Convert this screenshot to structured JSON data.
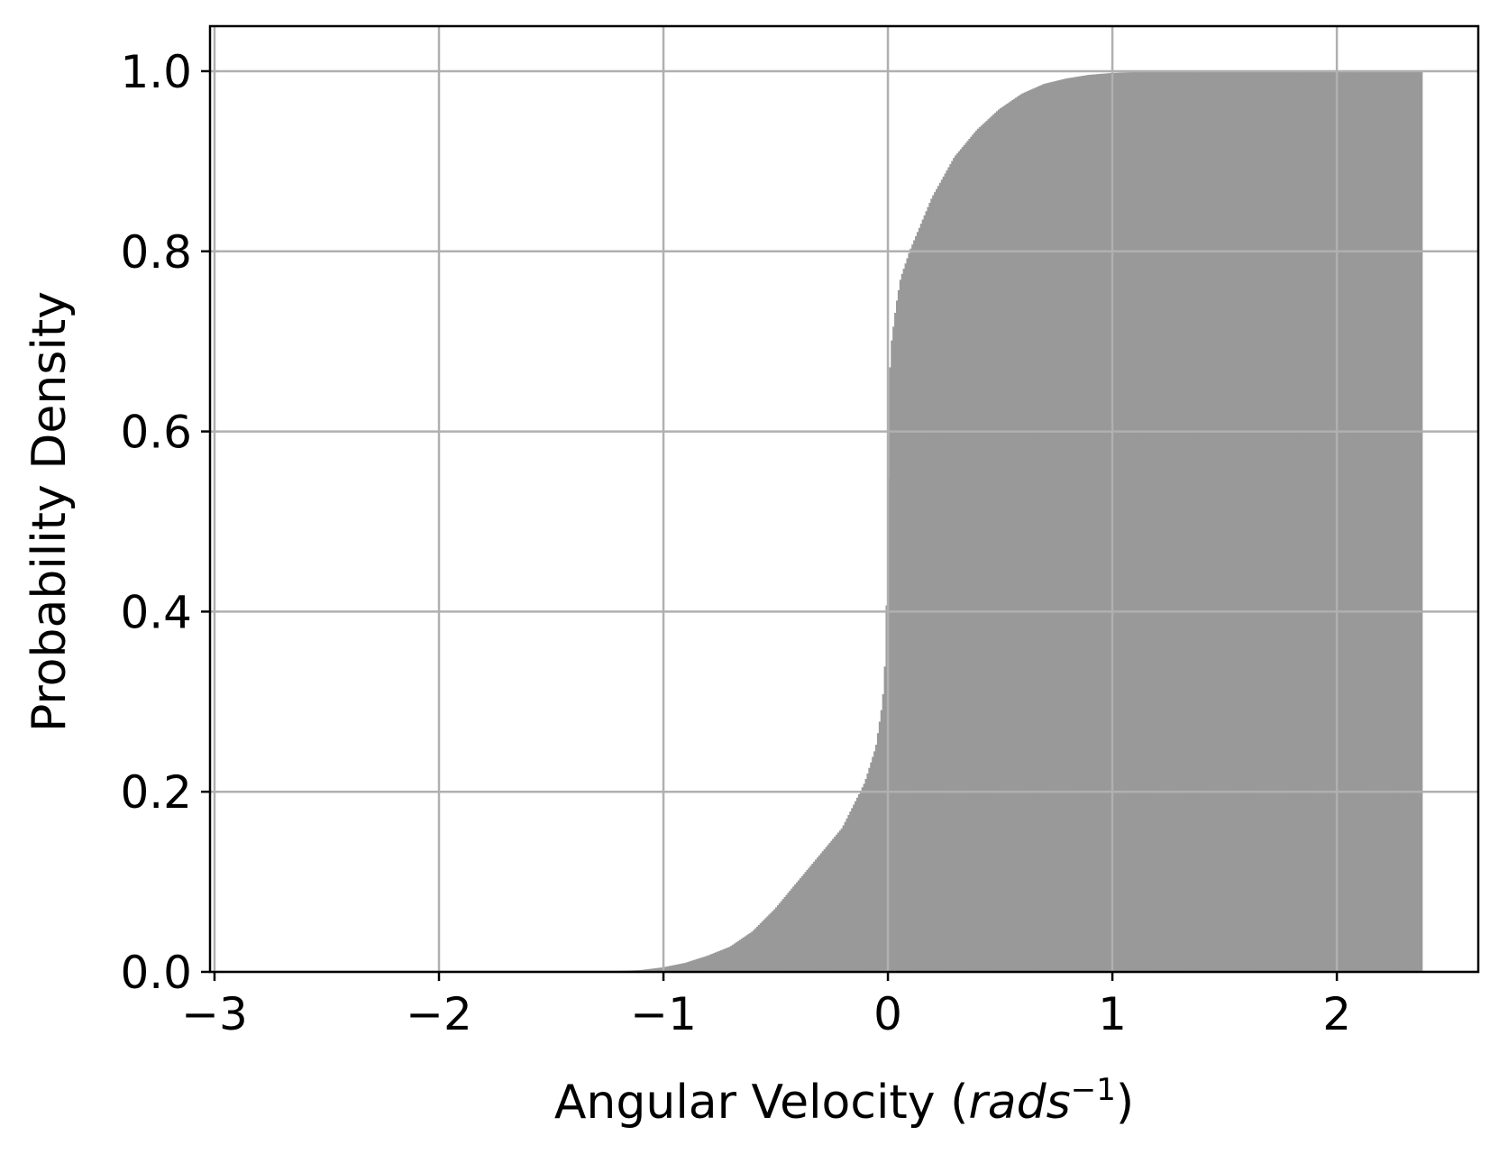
{
  "chart_data": {
    "type": "bar",
    "description_kind": "cumulative histogram",
    "xlabel": {
      "main": "Angular Velocity (",
      "italic": "rads",
      "superscript": "−1",
      "close": ")"
    },
    "ylabel": "Probability Density",
    "xlim": [
      -3.02,
      2.63
    ],
    "ylim": [
      0.0,
      1.05
    ],
    "x_ticks": [
      -3,
      -2,
      -1,
      0,
      1,
      2
    ],
    "x_tick_labels": [
      "−3",
      "−2",
      "−1",
      "0",
      "1",
      "2"
    ],
    "y_ticks": [
      0.0,
      0.2,
      0.4,
      0.6,
      0.8,
      1.0
    ],
    "y_tick_labels": [
      "0.0",
      "0.2",
      "0.4",
      "0.6",
      "0.8",
      "1.0"
    ],
    "grid": true,
    "bar_color": "#999999",
    "grid_color": "#b0b0b0",
    "data_range": [
      -3.0,
      2.38
    ],
    "cdf_points": {
      "x": [
        -3.0,
        -2.0,
        -1.5,
        -1.3,
        -1.2,
        -1.1,
        -1.0,
        -0.9,
        -0.8,
        -0.7,
        -0.6,
        -0.5,
        -0.4,
        -0.3,
        -0.2,
        -0.1,
        -0.05,
        -0.02,
        -0.01,
        0.0,
        0.01,
        0.02,
        0.04,
        0.06,
        0.1,
        0.15,
        0.2,
        0.3,
        0.4,
        0.5,
        0.6,
        0.7,
        0.8,
        0.9,
        1.0,
        1.1,
        1.2,
        1.5,
        2.0,
        2.38
      ],
      "y": [
        0.0,
        0.0,
        0.0,
        0.0,
        0.001,
        0.002,
        0.005,
        0.01,
        0.018,
        0.028,
        0.045,
        0.07,
        0.1,
        0.13,
        0.16,
        0.21,
        0.25,
        0.3,
        0.34,
        0.43,
        0.66,
        0.7,
        0.74,
        0.77,
        0.8,
        0.83,
        0.86,
        0.905,
        0.935,
        0.958,
        0.975,
        0.986,
        0.992,
        0.996,
        0.998,
        0.999,
        1.0,
        1.0,
        1.0,
        1.0
      ]
    }
  }
}
